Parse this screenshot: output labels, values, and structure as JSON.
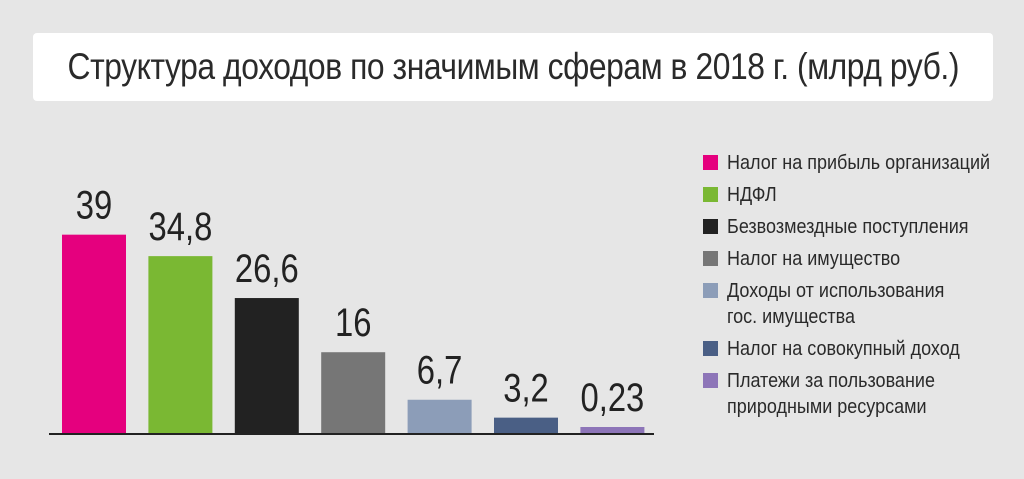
{
  "chart_data": {
    "type": "bar",
    "title": "Структура доходов по значимым сферам в 2018 г. (млрд руб.)",
    "categories": [
      "Налог на прибыль организаций",
      "НДФЛ",
      "Безвозмездные поступления",
      "Налог на имущество",
      "Доходы от использования гос. имущества",
      "Налог на совокупный доход",
      "Платежи за пользование природными ресурсами"
    ],
    "values": [
      39,
      34.8,
      26.6,
      16,
      6.7,
      3.2,
      0.23
    ],
    "value_labels": [
      "39",
      "34,8",
      "26,6",
      "16",
      "6,7",
      "3,2",
      "0,23"
    ],
    "colors": [
      "#e5007e",
      "#7ab833",
      "#222222",
      "#767676",
      "#8c9db8",
      "#4a5f85",
      "#8d75b8"
    ],
    "ylim": [
      0,
      45
    ],
    "xlabel": "",
    "ylabel": "",
    "grid": false,
    "legend_position": "right"
  },
  "legend": [
    {
      "lines": [
        "Налог на прибыль организаций"
      ]
    },
    {
      "lines": [
        "НДФЛ"
      ]
    },
    {
      "lines": [
        "Безвозмездные поступления"
      ]
    },
    {
      "lines": [
        "Налог на имущество"
      ]
    },
    {
      "lines": [
        "Доходы от использования",
        "гос. имущества"
      ]
    },
    {
      "lines": [
        "Налог на совокупный доход"
      ]
    },
    {
      "lines": [
        "Платежи за пользование",
        "природными ресурсами"
      ]
    }
  ]
}
